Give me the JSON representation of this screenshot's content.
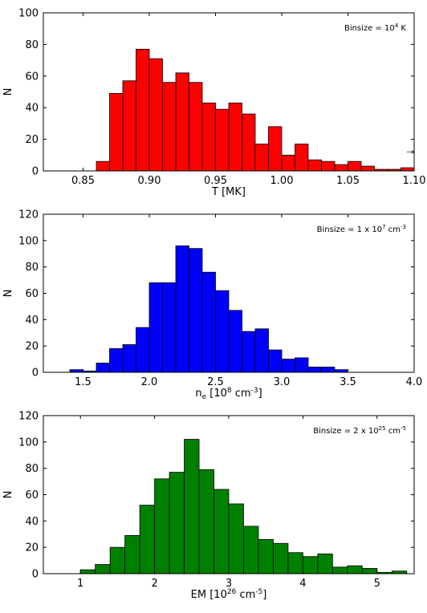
{
  "chart_data": [
    {
      "type": "bar",
      "color": "#ff0000",
      "title": "",
      "xlabel": "T [MK]",
      "ylabel": "N",
      "annotation": {
        "prefix": "Binsize = 10",
        "sup": "4",
        "suffix": " K"
      },
      "xlim": [
        0.82,
        1.1
      ],
      "ylim": [
        0,
        100
      ],
      "xticks": [
        0.85,
        0.9,
        0.95,
        1.0,
        1.05,
        1.1
      ],
      "xtick_labels": [
        "0.85",
        "0.90",
        "0.95",
        "1.00",
        "1.05",
        "1.10"
      ],
      "yticks": [
        0,
        20,
        40,
        60,
        80,
        100
      ],
      "ytick_labels": [
        "0",
        "20",
        "40",
        "60",
        "80",
        "100"
      ],
      "bin_width": 0.01,
      "bins": [
        {
          "x": 0.86,
          "y": 6
        },
        {
          "x": 0.87,
          "y": 49
        },
        {
          "x": 0.88,
          "y": 57
        },
        {
          "x": 0.89,
          "y": 77
        },
        {
          "x": 0.9,
          "y": 71
        },
        {
          "x": 0.91,
          "y": 56
        },
        {
          "x": 0.92,
          "y": 62
        },
        {
          "x": 0.93,
          "y": 56
        },
        {
          "x": 0.94,
          "y": 43
        },
        {
          "x": 0.95,
          "y": 39
        },
        {
          "x": 0.96,
          "y": 43
        },
        {
          "x": 0.97,
          "y": 36
        },
        {
          "x": 0.98,
          "y": 17
        },
        {
          "x": 0.99,
          "y": 28
        },
        {
          "x": 1.0,
          "y": 10
        },
        {
          "x": 1.01,
          "y": 17
        },
        {
          "x": 1.02,
          "y": 7
        },
        {
          "x": 1.03,
          "y": 6
        },
        {
          "x": 1.04,
          "y": 4
        },
        {
          "x": 1.05,
          "y": 6
        },
        {
          "x": 1.06,
          "y": 3
        },
        {
          "x": 1.07,
          "y": 1
        },
        {
          "x": 1.08,
          "y": 1
        },
        {
          "x": 1.09,
          "y": 2
        },
        {
          "x": 1.1,
          "y": 10
        }
      ],
      "overflow_arrow": {
        "x": 1.1,
        "y": 12
      }
    },
    {
      "type": "bar",
      "color": "#0000ff",
      "title": "",
      "xlabel": {
        "prefix": "n",
        "sub": "e",
        "middle": " [10",
        "sup1": "8",
        "middle2": " cm",
        "sup2": "-3",
        "suffix": "]"
      },
      "ylabel": "N",
      "annotation": {
        "prefix": "Binsize = 1 x 10",
        "sup": "7",
        "middle": " cm",
        "sup2": "-3",
        "suffix": ""
      },
      "xlim": [
        1.2,
        4.0
      ],
      "ylim": [
        0,
        120
      ],
      "xticks": [
        1.5,
        2.0,
        2.5,
        3.0,
        3.5,
        4.0
      ],
      "xtick_labels": [
        "1.5",
        "2.0",
        "2.5",
        "3.0",
        "3.5",
        "4.0"
      ],
      "yticks": [
        0,
        20,
        40,
        60,
        80,
        100,
        120
      ],
      "ytick_labels": [
        "0",
        "20",
        "40",
        "60",
        "80",
        "100",
        "120"
      ],
      "bin_width": 0.1,
      "bins": [
        {
          "x": 1.4,
          "y": 2
        },
        {
          "x": 1.5,
          "y": 1
        },
        {
          "x": 1.6,
          "y": 7
        },
        {
          "x": 1.7,
          "y": 18
        },
        {
          "x": 1.8,
          "y": 21
        },
        {
          "x": 1.9,
          "y": 34
        },
        {
          "x": 2.0,
          "y": 68
        },
        {
          "x": 2.1,
          "y": 68
        },
        {
          "x": 2.2,
          "y": 96
        },
        {
          "x": 2.3,
          "y": 94
        },
        {
          "x": 2.4,
          "y": 76
        },
        {
          "x": 2.5,
          "y": 62
        },
        {
          "x": 2.6,
          "y": 47
        },
        {
          "x": 2.7,
          "y": 31
        },
        {
          "x": 2.8,
          "y": 33
        },
        {
          "x": 2.9,
          "y": 17
        },
        {
          "x": 3.0,
          "y": 10
        },
        {
          "x": 3.1,
          "y": 11
        },
        {
          "x": 3.2,
          "y": 4
        },
        {
          "x": 3.3,
          "y": 4
        },
        {
          "x": 3.4,
          "y": 2
        }
      ]
    },
    {
      "type": "bar",
      "color": "#008000",
      "title": "",
      "xlabel": {
        "prefix": "EM [10",
        "sup": "26",
        "middle": " cm",
        "sup2": "-5",
        "suffix": "]"
      },
      "ylabel": "N",
      "annotation": {
        "prefix": "Binsize = 2 x 10",
        "sup": "25",
        "middle": " cm",
        "sup2": "-5",
        "suffix": ""
      },
      "xlim": [
        0.5,
        5.5
      ],
      "ylim": [
        0,
        120
      ],
      "xticks": [
        1,
        2,
        3,
        4,
        5
      ],
      "xtick_labels": [
        "1",
        "2",
        "3",
        "4",
        "5"
      ],
      "yticks": [
        0,
        20,
        40,
        60,
        80,
        100,
        120
      ],
      "ytick_labels": [
        "0",
        "20",
        "40",
        "60",
        "80",
        "100",
        "120"
      ],
      "bin_width": 0.2,
      "bins": [
        {
          "x": 1.0,
          "y": 3
        },
        {
          "x": 1.2,
          "y": 7
        },
        {
          "x": 1.4,
          "y": 20
        },
        {
          "x": 1.6,
          "y": 29
        },
        {
          "x": 1.8,
          "y": 52
        },
        {
          "x": 2.0,
          "y": 72
        },
        {
          "x": 2.2,
          "y": 77
        },
        {
          "x": 2.4,
          "y": 102
        },
        {
          "x": 2.6,
          "y": 79
        },
        {
          "x": 2.8,
          "y": 64
        },
        {
          "x": 3.0,
          "y": 53
        },
        {
          "x": 3.2,
          "y": 36
        },
        {
          "x": 3.4,
          "y": 26
        },
        {
          "x": 3.6,
          "y": 23
        },
        {
          "x": 3.8,
          "y": 16
        },
        {
          "x": 4.0,
          "y": 13
        },
        {
          "x": 4.2,
          "y": 15
        },
        {
          "x": 4.4,
          "y": 5
        },
        {
          "x": 4.6,
          "y": 6
        },
        {
          "x": 4.8,
          "y": 4
        },
        {
          "x": 5.0,
          "y": 1
        },
        {
          "x": 5.2,
          "y": 2
        }
      ]
    }
  ]
}
